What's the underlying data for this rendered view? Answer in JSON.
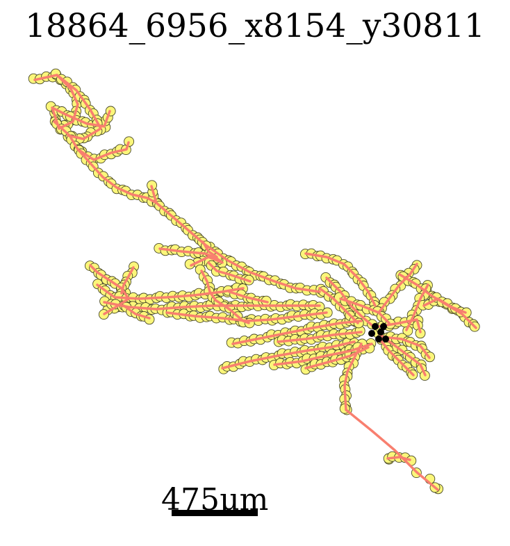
{
  "title": "18864_6956_x8154_y30811",
  "scale_bar": {
    "label": "475μm"
  },
  "colors": {
    "background": "#ffffff",
    "branch": "#f87f6f",
    "node_fill": "#fbf67a",
    "node_edge": "#4a4a2a",
    "soma": "#000000"
  }
}
